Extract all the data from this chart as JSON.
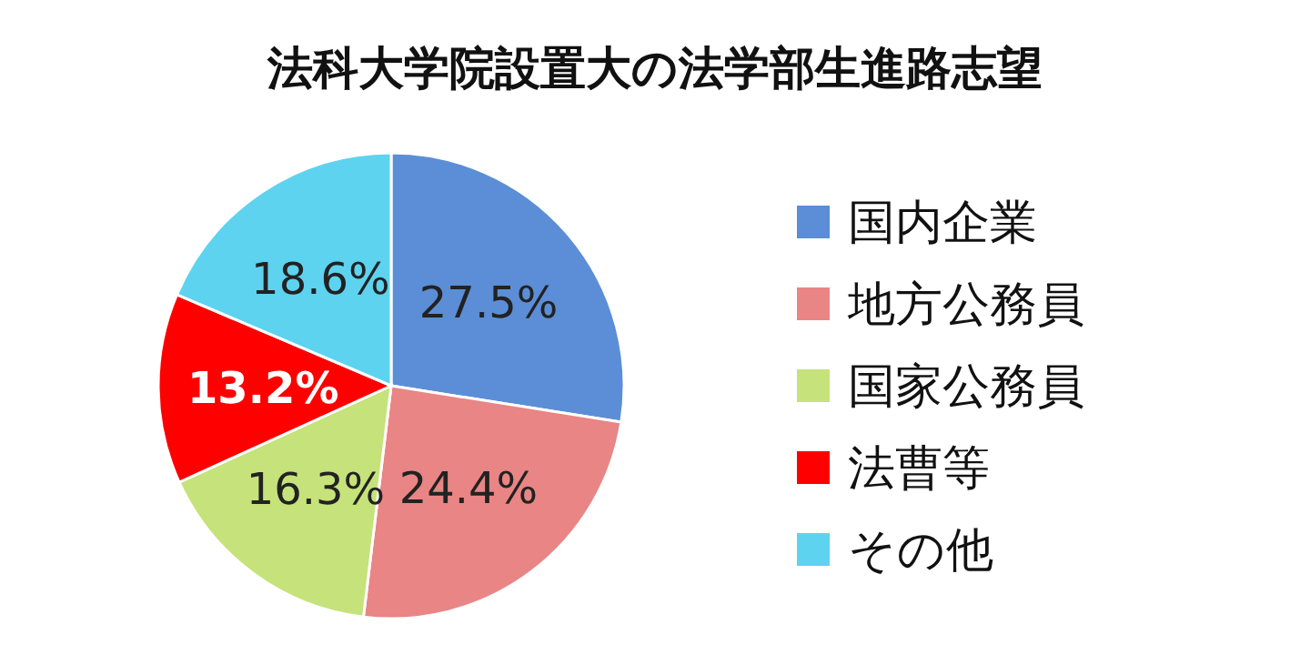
{
  "chart_data": {
    "type": "pie",
    "title": "法科大学院設置大の法学部生進路志望",
    "categories": [
      "国内企業",
      "地方公務員",
      "国家公務員",
      "法曹等",
      "その他"
    ],
    "values": [
      27.5,
      24.4,
      16.3,
      13.2,
      18.6
    ],
    "value_labels": [
      "27.5%",
      "24.4%",
      "16.3%",
      "13.2%",
      "18.6%"
    ],
    "colors": [
      "#5b8ed6",
      "#e98585",
      "#c6e27a",
      "#ff0000",
      "#5dd3f0"
    ],
    "legend": "right"
  }
}
